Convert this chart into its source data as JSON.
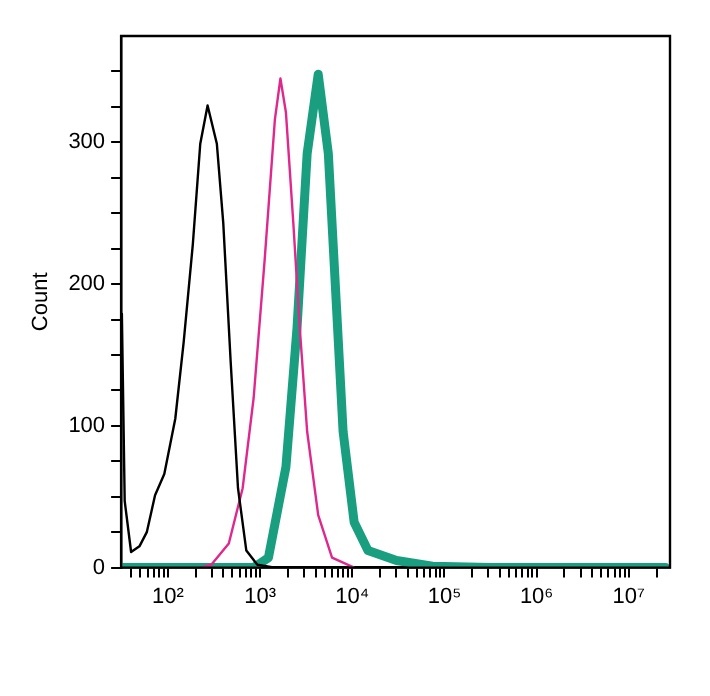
{
  "chart_data": {
    "type": "line",
    "ylabel": "Count",
    "log": "x",
    "grid": false,
    "legend": false,
    "marker": "none",
    "line_style": "solid",
    "xlim": [
      31,
      28000000
    ],
    "ylim": [
      0,
      375
    ],
    "xticks": [
      {
        "value": 40,
        "label": null
      },
      {
        "value": 50,
        "label": null
      },
      {
        "value": 60,
        "label": null
      },
      {
        "value": 70,
        "label": null
      },
      {
        "value": 80,
        "label": null
      },
      {
        "value": 90,
        "label": null
      },
      {
        "value": 100,
        "label": "10²"
      },
      {
        "value": 200,
        "label": null
      },
      {
        "value": 300,
        "label": null
      },
      {
        "value": 400,
        "label": null
      },
      {
        "value": 500,
        "label": null
      },
      {
        "value": 600,
        "label": null
      },
      {
        "value": 700,
        "label": null
      },
      {
        "value": 800,
        "label": null
      },
      {
        "value": 900,
        "label": null
      },
      {
        "value": 1000,
        "label": "10³"
      },
      {
        "value": 2000,
        "label": null
      },
      {
        "value": 3000,
        "label": null
      },
      {
        "value": 4000,
        "label": null
      },
      {
        "value": 5000,
        "label": null
      },
      {
        "value": 6000,
        "label": null
      },
      {
        "value": 7000,
        "label": null
      },
      {
        "value": 8000,
        "label": null
      },
      {
        "value": 9000,
        "label": null
      },
      {
        "value": 10000,
        "label": "10⁴"
      },
      {
        "value": 20000,
        "label": null
      },
      {
        "value": 30000,
        "label": null
      },
      {
        "value": 40000,
        "label": null
      },
      {
        "value": 50000,
        "label": null
      },
      {
        "value": 60000,
        "label": null
      },
      {
        "value": 70000,
        "label": null
      },
      {
        "value": 80000,
        "label": null
      },
      {
        "value": 90000,
        "label": null
      },
      {
        "value": 100000,
        "label": "10⁵"
      },
      {
        "value": 200000,
        "label": null
      },
      {
        "value": 300000,
        "label": null
      },
      {
        "value": 400000,
        "label": null
      },
      {
        "value": 500000,
        "label": null
      },
      {
        "value": 600000,
        "label": null
      },
      {
        "value": 700000,
        "label": null
      },
      {
        "value": 800000,
        "label": null
      },
      {
        "value": 900000,
        "label": null
      },
      {
        "value": 1000000,
        "label": "10⁶"
      },
      {
        "value": 2000000,
        "label": null
      },
      {
        "value": 3000000,
        "label": null
      },
      {
        "value": 4000000,
        "label": null
      },
      {
        "value": 5000000,
        "label": null
      },
      {
        "value": 6000000,
        "label": null
      },
      {
        "value": 7000000,
        "label": null
      },
      {
        "value": 8000000,
        "label": null
      },
      {
        "value": 9000000,
        "label": null
      },
      {
        "value": 10000000,
        "label": "10⁷"
      },
      {
        "value": 20000000,
        "label": null
      }
    ],
    "yticks": [
      0,
      {
        "value": 25,
        "label": null
      },
      {
        "value": 50,
        "label": null
      },
      {
        "value": 75,
        "label": null
      },
      100,
      {
        "value": 125,
        "label": null
      },
      {
        "value": 150,
        "label": null
      },
      {
        "value": 175,
        "label": null
      },
      200,
      {
        "value": 225,
        "label": null
      },
      {
        "value": 250,
        "label": null
      },
      {
        "value": 275,
        "label": null
      },
      300,
      {
        "value": 325,
        "label": null
      },
      {
        "value": 350,
        "label": null
      }
    ],
    "series": [
      {
        "color": "#000000",
        "x": [
          31.6,
          33.9,
          39.8,
          49.0,
          58.9,
          72.4,
          91.2,
          120,
          148,
          186,
          224,
          269,
          339,
          398,
          479,
          575,
          708,
          933,
          1445
        ],
        "values": [
          179,
          47,
          11,
          15,
          25,
          51,
          66,
          105,
          159,
          228,
          299,
          326,
          299,
          243,
          145,
          56,
          12,
          2,
          0
        ]
      },
      {
        "color": "#e0288c",
        "x": [
          224,
          295,
          457,
          646,
          851,
          1122,
          1445,
          1660,
          1905,
          2291,
          2692,
          3236,
          4266,
          6026,
          10471
        ],
        "values": [
          0,
          2,
          17,
          56,
          120,
          218,
          316,
          345,
          321,
          243,
          169,
          96,
          37,
          7,
          0
        ]
      },
      {
        "color": "#1a9e80",
        "x": [
          31.6,
          851,
          1230,
          1905,
          2512,
          3236,
          4266,
          5495,
          6607,
          7943,
          10471,
          14791,
          30200,
          74130,
          316228,
          25118864
        ],
        "values": [
          0,
          0,
          7,
          71,
          169,
          292,
          348,
          292,
          194,
          96,
          32,
          12,
          5,
          1,
          0,
          0
        ]
      }
    ]
  }
}
